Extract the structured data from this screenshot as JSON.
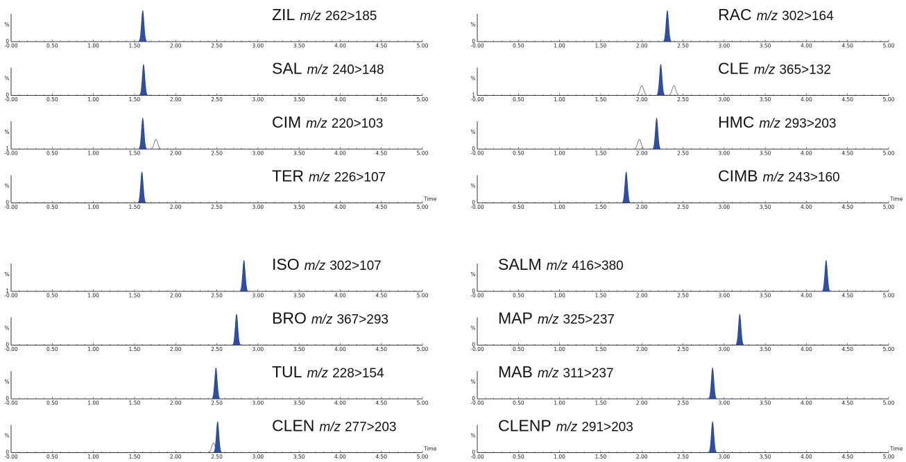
{
  "x_tick_labels": [
    "-0.00",
    "0.50",
    "1.00",
    "1.50",
    "2.00",
    "2.50",
    "3.00",
    "3.50",
    "4.00",
    "4.50",
    "5.00"
  ],
  "time_label": "Time",
  "ylabel": "%",
  "chart_data": {
    "type": "line",
    "xlim": [
      0,
      5
    ],
    "ylim": [
      0,
      100
    ],
    "colors": {
      "peak_fill": "#2f4ea6",
      "trace": "#333333",
      "axis": "#333333"
    },
    "panels": [
      {
        "group": "top-left",
        "row": 0,
        "name": "ZIL",
        "mz_prefix": "m/z",
        "transition": "262>185",
        "y_min_label": "0",
        "peak_rt": 1.6,
        "extra_peaks": []
      },
      {
        "group": "top-left",
        "row": 1,
        "name": "SAL",
        "mz_prefix": "m/z",
        "transition": "240>148",
        "y_min_label": "0",
        "peak_rt": 1.61,
        "extra_peaks": []
      },
      {
        "group": "top-left",
        "row": 2,
        "name": "CIM",
        "mz_prefix": "m/z",
        "transition": "220>103",
        "y_min_label": "1",
        "peak_rt": 1.6,
        "extra_peaks": [
          1.76
        ]
      },
      {
        "group": "top-left",
        "row": 3,
        "name": "TER",
        "mz_prefix": "m/z",
        "transition": "226>107",
        "y_min_label": "0",
        "peak_rt": 1.59,
        "extra_peaks": [],
        "time_label": true
      },
      {
        "group": "top-right",
        "row": 0,
        "name": "RAC",
        "mz_prefix": "m/z",
        "transition": "302>164",
        "y_min_label": "0",
        "peak_rt": 2.31,
        "extra_peaks": []
      },
      {
        "group": "top-right",
        "row": 1,
        "name": "CLE",
        "mz_prefix": "m/z",
        "transition": "365>132",
        "y_min_label": "1",
        "peak_rt": 2.23,
        "extra_peaks": [
          2.39,
          2.0
        ]
      },
      {
        "group": "top-right",
        "row": 2,
        "name": "HMC",
        "mz_prefix": "m/z",
        "transition": "293>203",
        "y_min_label": "0",
        "peak_rt": 2.18,
        "extra_peaks": [
          1.97
        ]
      },
      {
        "group": "top-right",
        "row": 3,
        "name": "CIMB",
        "mz_prefix": "m/z",
        "transition": "243>160",
        "y_min_label": "0",
        "peak_rt": 1.81,
        "extra_peaks": [],
        "time_label": true
      },
      {
        "group": "bottom-left",
        "row": 0,
        "name": "ISO",
        "mz_prefix": "m/z",
        "transition": "302>107",
        "y_min_label": "1",
        "peak_rt": 2.83,
        "extra_peaks": []
      },
      {
        "group": "bottom-left",
        "row": 1,
        "name": "BRO",
        "mz_prefix": "m/z",
        "transition": "367>293",
        "y_min_label": "0",
        "peak_rt": 2.74,
        "extra_peaks": []
      },
      {
        "group": "bottom-left",
        "row": 2,
        "name": "TUL",
        "mz_prefix": "m/z",
        "transition": "228>154",
        "y_min_label": "0",
        "peak_rt": 2.49,
        "extra_peaks": []
      },
      {
        "group": "bottom-left",
        "row": 3,
        "name": "CLEN",
        "mz_prefix": "m/z",
        "transition": "277>203",
        "y_min_label": "0",
        "peak_rt": 2.51,
        "extra_peaks": [
          2.46
        ],
        "time_label": true
      },
      {
        "group": "bottom-right",
        "row": 0,
        "name": "SALM",
        "mz_prefix": "m/z",
        "transition": "416>380",
        "y_min_label": "0",
        "peak_rt": 4.24,
        "extra_peaks": []
      },
      {
        "group": "bottom-right",
        "row": 1,
        "name": "MAP",
        "mz_prefix": "m/z",
        "transition": "325>237",
        "y_min_label": "0",
        "peak_rt": 3.19,
        "extra_peaks": []
      },
      {
        "group": "bottom-right",
        "row": 2,
        "name": "MAB",
        "mz_prefix": "m/z",
        "transition": "311>237",
        "y_min_label": "0",
        "peak_rt": 2.86,
        "extra_peaks": []
      },
      {
        "group": "bottom-right",
        "row": 3,
        "name": "CLENP",
        "mz_prefix": "m/z",
        "transition": "291>203",
        "y_min_label": "0",
        "peak_rt": 2.86,
        "extra_peaks": [],
        "time_label": true
      }
    ]
  }
}
